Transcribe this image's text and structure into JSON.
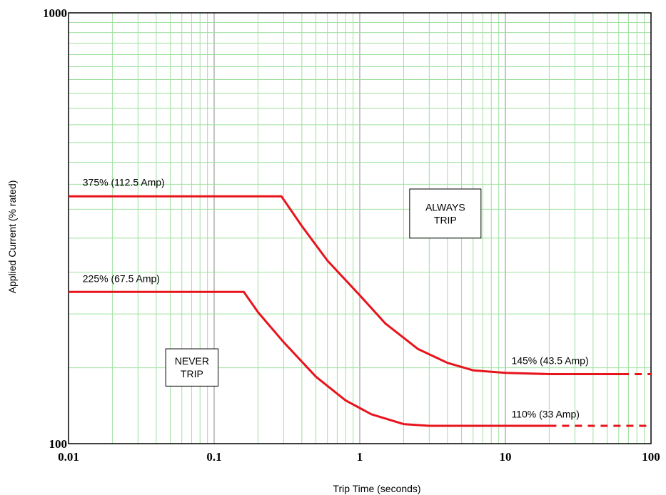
{
  "chart_data": {
    "type": "line",
    "title": "",
    "xlabel": "Trip Time (seconds)",
    "ylabel": "Applied Current (% rated)",
    "x_scale": "log",
    "y_scale": "log",
    "xlim": [
      0.01,
      100
    ],
    "ylim": [
      100,
      1000
    ],
    "x_ticks": [
      "0.01",
      "0.1",
      "1",
      "10",
      "100"
    ],
    "y_ticks": [
      "100",
      "1000"
    ],
    "grid": true,
    "colors": {
      "curve": "#e8141c",
      "grid_minor": "#9fe09f",
      "grid_major": "#888888"
    },
    "series": [
      {
        "x": [
          0.01,
          0.29,
          0.4,
          0.6,
          1.0,
          1.5,
          2.5,
          4.0,
          6.0,
          10,
          20,
          40,
          63
        ],
        "y": [
          375,
          375,
          320,
          266,
          221,
          190,
          166,
          154,
          148,
          146,
          145,
          145,
          145
        ],
        "extension_x": [
          63,
          100
        ],
        "extension_y": [
          145,
          145
        ]
      },
      {
        "x": [
          0.01,
          0.16,
          0.2,
          0.3,
          0.5,
          0.8,
          1.2,
          2.0,
          3.0,
          5.0,
          10,
          20
        ],
        "y": [
          225,
          225,
          202,
          172,
          143,
          126,
          117,
          111,
          110,
          110,
          110,
          110
        ],
        "extension_x": [
          20,
          100
        ],
        "extension_y": [
          110,
          110
        ]
      }
    ],
    "annotations": [
      {
        "text": "375%  (112.5 Amp)",
        "x": 0.0125,
        "y": 397
      },
      {
        "text": "225%  (67.5 Amp)",
        "x": 0.0125,
        "y": 237
      },
      {
        "text": "145% (43.5 Amp)",
        "x": 11,
        "y": 153
      },
      {
        "text": "110% (33 Amp)",
        "x": 11,
        "y": 115
      }
    ],
    "regions": [
      {
        "lines": [
          "ALWAYS",
          "TRIP"
        ],
        "x": [
          2.2,
          6.8
        ],
        "y": [
          300,
          390
        ]
      },
      {
        "lines": [
          "NEVER",
          "TRIP"
        ],
        "x": [
          0.0465,
          0.1065
        ],
        "y": [
          136,
          166
        ]
      }
    ]
  }
}
